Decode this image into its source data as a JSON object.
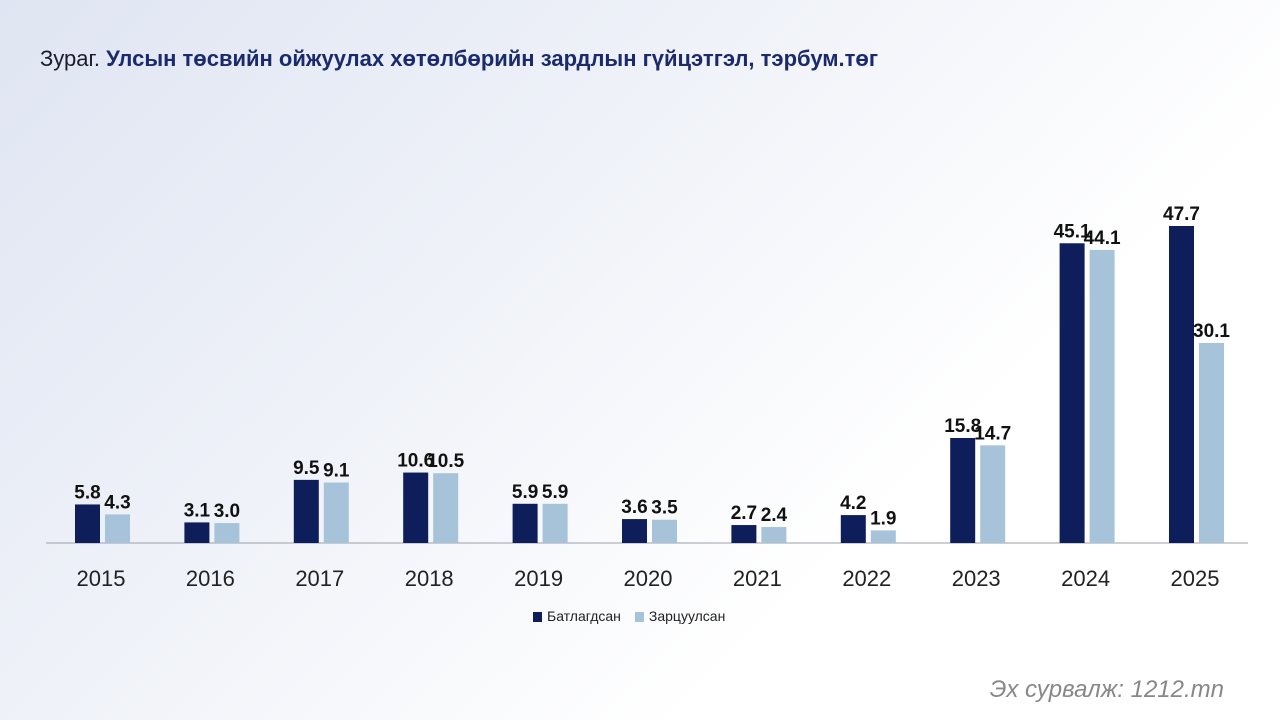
{
  "title": {
    "prefix": "Зураг.",
    "main": "Улсын төсвийн ойжуулах хөтөлбөрийн зардлын гүйцэтгэл, тэрбум.төг"
  },
  "source": "Эх сурвалж: 1212.mn",
  "chart_data": {
    "type": "bar",
    "categories": [
      "2015",
      "2016",
      "2017",
      "2018",
      "2019",
      "2020",
      "2021",
      "2022",
      "2023",
      "2024",
      "2025"
    ],
    "series": [
      {
        "name": "Батлагдсан",
        "color": "#0e1e5b",
        "values": [
          5.8,
          3.1,
          9.5,
          10.6,
          5.9,
          3.6,
          2.7,
          4.2,
          15.8,
          45.1,
          47.7
        ]
      },
      {
        "name": "Зарцуулсан",
        "color": "#a6c3da",
        "values": [
          4.3,
          3.0,
          9.1,
          10.5,
          5.9,
          3.5,
          2.4,
          1.9,
          14.7,
          44.1,
          30.1
        ]
      }
    ],
    "data_labels": true,
    "ylim": [
      0,
      50
    ],
    "grid": false,
    "legend": "bottom"
  }
}
